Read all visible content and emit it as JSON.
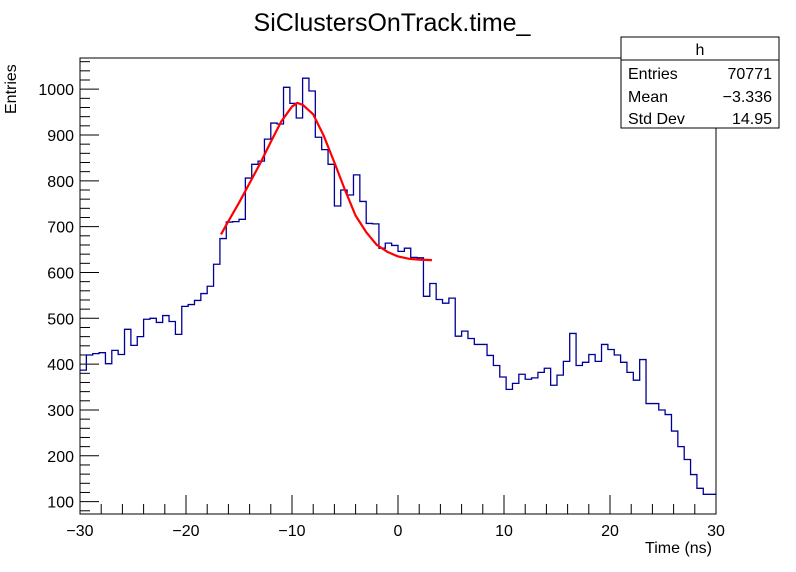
{
  "chart_data": {
    "type": "histogram",
    "title": "SiClustersOnTrack.time_",
    "xlabel": "Time (ns)",
    "ylabel": "Entries",
    "xlim": [
      -30,
      30
    ],
    "ylim": [
      73,
      1068
    ],
    "x_ticks": [
      -30,
      -20,
      -10,
      0,
      10,
      20,
      30
    ],
    "x_tick_labels": [
      "−30",
      "−20",
      "−10",
      "0",
      "10",
      "20",
      "30"
    ],
    "y_ticks": [
      100,
      200,
      300,
      400,
      500,
      600,
      700,
      800,
      900,
      1000
    ],
    "y_tick_labels": [
      "100",
      "200",
      "300",
      "400",
      "500",
      "600",
      "700",
      "800",
      "900",
      "1000"
    ],
    "grid": false,
    "bin_count": 100,
    "bin_width": 0.6,
    "line_color": "#000099",
    "values": [
      387,
      420,
      423,
      425,
      401,
      430,
      421,
      476,
      441,
      460,
      498,
      500,
      491,
      506,
      493,
      465,
      526,
      530,
      539,
      554,
      570,
      618,
      674,
      710,
      711,
      716,
      806,
      836,
      843,
      891,
      926,
      924,
      1004,
      969,
      937,
      1024,
      996,
      895,
      868,
      836,
      745,
      780,
      769,
      813,
      755,
      707,
      706,
      653,
      664,
      659,
      646,
      653,
      633,
      632,
      548,
      576,
      541,
      533,
      544,
      461,
      472,
      456,
      443,
      443,
      419,
      397,
      372,
      345,
      358,
      378,
      367,
      370,
      382,
      391,
      354,
      376,
      406,
      467,
      397,
      404,
      421,
      406,
      443,
      432,
      420,
      404,
      382,
      365,
      410,
      314,
      314,
      300,
      290,
      254,
      220,
      192,
      159,
      129,
      116,
      116
    ],
    "fit": {
      "color": "#ff0000",
      "x": [
        -16.7,
        -16,
        -15,
        -14,
        -13,
        -12,
        -11,
        -10,
        -9.5,
        -9,
        -8,
        -7,
        -6,
        -5,
        -4,
        -3,
        -2,
        -1,
        0,
        1,
        2,
        3.2
      ],
      "y": [
        683,
        712,
        752,
        795,
        838,
        885,
        930,
        962,
        970,
        966,
        945,
        898,
        840,
        780,
        724,
        688,
        660,
        645,
        635,
        630,
        628,
        627
      ]
    },
    "stats_box": {
      "title": "h",
      "rows": [
        {
          "label": "Entries",
          "value": "70771"
        },
        {
          "label": "Mean",
          "value": "−3.336"
        },
        {
          "label": "Std Dev",
          "value": "14.95"
        }
      ]
    }
  }
}
